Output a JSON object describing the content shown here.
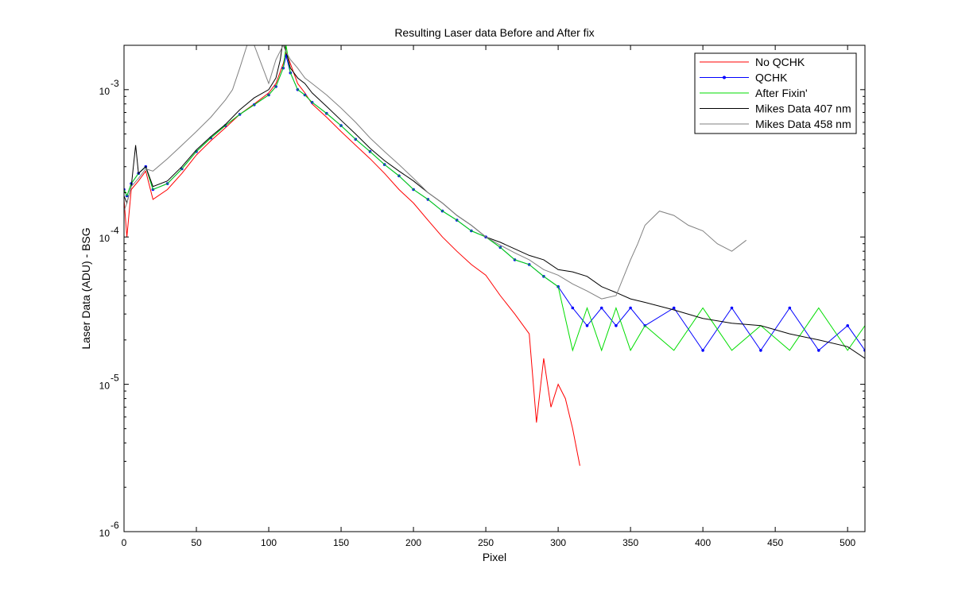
{
  "chart_data": {
    "type": "line",
    "title": "Resulting Laser data Before and After fix",
    "xlabel": "Pixel",
    "ylabel": "Laser Data (ADU) - BSG",
    "xlim": [
      0,
      512
    ],
    "ylim": [
      1e-06,
      0.002
    ],
    "yscale": "log",
    "x_ticks": [
      0,
      50,
      100,
      150,
      200,
      250,
      300,
      350,
      400,
      450,
      500
    ],
    "x_tick_labels": [
      "0",
      "50",
      "100",
      "150",
      "200",
      "250",
      "300",
      "350",
      "400",
      "450",
      "500"
    ],
    "y_ticks": [
      1e-06,
      1e-05,
      0.0001,
      0.001
    ],
    "y_tick_labels": [
      {
        "base": "10",
        "exp": "-6"
      },
      {
        "base": "10",
        "exp": "-5"
      },
      {
        "base": "10",
        "exp": "-4"
      },
      {
        "base": "10",
        "exp": "-3"
      }
    ],
    "grid": false,
    "legend_position": "top-right",
    "series": [
      {
        "name": "No QCHK",
        "color": "#ff0000",
        "marker": "none",
        "x": [
          0,
          2,
          5,
          10,
          15,
          20,
          30,
          40,
          50,
          60,
          70,
          80,
          90,
          100,
          105,
          110,
          112,
          115,
          120,
          125,
          130,
          140,
          150,
          160,
          170,
          180,
          190,
          200,
          210,
          220,
          230,
          240,
          250,
          260,
          270,
          280,
          285,
          290,
          295,
          300,
          305,
          310,
          315
        ],
        "y": [
          0.00018,
          0.0001,
          0.00021,
          0.00024,
          0.00028,
          0.00018,
          0.00021,
          0.00027,
          0.00036,
          0.00045,
          0.00055,
          0.00068,
          0.0008,
          0.00095,
          0.0011,
          0.0015,
          0.0018,
          0.0015,
          0.0011,
          0.00095,
          0.0008,
          0.00065,
          0.00052,
          0.00042,
          0.00034,
          0.00027,
          0.00021,
          0.00017,
          0.00013,
          0.0001,
          8e-05,
          6.5e-05,
          5.5e-05,
          4e-05,
          3e-05,
          2.2e-05,
          5.5e-06,
          1.5e-05,
          7e-06,
          1e-05,
          8e-06,
          5e-06,
          2.8e-06
        ]
      },
      {
        "name": "QCHK",
        "color": "#0000ff",
        "marker": "dot",
        "x": [
          0,
          2,
          5,
          10,
          15,
          20,
          30,
          40,
          50,
          60,
          70,
          80,
          90,
          100,
          105,
          110,
          112,
          115,
          120,
          125,
          130,
          140,
          150,
          160,
          170,
          180,
          190,
          200,
          210,
          220,
          230,
          240,
          250,
          260,
          270,
          280,
          290,
          300,
          310,
          320,
          330,
          340,
          350,
          360,
          380,
          400,
          420,
          440,
          460,
          480,
          500,
          512
        ],
        "y": [
          0.00021,
          0.00019,
          0.00023,
          0.00027,
          0.0003,
          0.00021,
          0.00023,
          0.00029,
          0.00038,
          0.00047,
          0.00057,
          0.00068,
          0.00079,
          0.00092,
          0.00105,
          0.0014,
          0.0017,
          0.0013,
          0.001,
          0.00092,
          0.00082,
          0.00069,
          0.00057,
          0.00046,
          0.00038,
          0.00031,
          0.00026,
          0.00021,
          0.00018,
          0.00015,
          0.00013,
          0.00011,
          0.0001,
          8.5e-05,
          7e-05,
          6.5e-05,
          5.4e-05,
          4.6e-05,
          3.3e-05,
          2.5e-05,
          3.3e-05,
          2.5e-05,
          3.3e-05,
          2.5e-05,
          3.3e-05,
          1.7e-05,
          3.3e-05,
          1.7e-05,
          3.3e-05,
          1.7e-05,
          2.5e-05,
          1.7e-05
        ]
      },
      {
        "name": "After Fixin'",
        "color": "#00dd00",
        "marker": "none",
        "x": [
          0,
          2,
          5,
          10,
          15,
          20,
          30,
          40,
          50,
          60,
          70,
          80,
          90,
          100,
          105,
          110,
          112,
          115,
          120,
          125,
          130,
          140,
          150,
          160,
          170,
          180,
          190,
          200,
          210,
          220,
          230,
          240,
          250,
          260,
          270,
          280,
          290,
          300,
          310,
          320,
          330,
          340,
          350,
          360,
          380,
          400,
          420,
          440,
          460,
          480,
          500,
          512
        ],
        "y": [
          0.00021,
          0.00019,
          0.00023,
          0.00027,
          0.0003,
          0.00021,
          0.00023,
          0.00029,
          0.00038,
          0.00047,
          0.00057,
          0.00068,
          0.00079,
          0.00092,
          0.00105,
          0.0014,
          0.002,
          0.0013,
          0.001,
          0.00092,
          0.00082,
          0.00069,
          0.00057,
          0.00046,
          0.00038,
          0.00031,
          0.00026,
          0.00021,
          0.00018,
          0.00015,
          0.00013,
          0.00011,
          0.0001,
          8.5e-05,
          7e-05,
          6.5e-05,
          5.4e-05,
          4.6e-05,
          1.7e-05,
          3.3e-05,
          1.7e-05,
          3.3e-05,
          1.7e-05,
          2.5e-05,
          1.7e-05,
          3.3e-05,
          1.7e-05,
          2.5e-05,
          1.7e-05,
          3.3e-05,
          1.7e-05,
          2.5e-05
        ]
      },
      {
        "name": "Mikes Data 407 nm",
        "color": "#000000",
        "marker": "none",
        "x": [
          0,
          2,
          5,
          8,
          10,
          15,
          20,
          30,
          40,
          50,
          60,
          70,
          80,
          90,
          100,
          105,
          108,
          110,
          112,
          115,
          120,
          125,
          130,
          140,
          150,
          160,
          170,
          180,
          190,
          200,
          210,
          220,
          230,
          240,
          250,
          260,
          270,
          280,
          290,
          300,
          310,
          320,
          330,
          340,
          350,
          360,
          380,
          400,
          420,
          440,
          460,
          480,
          500,
          512
        ],
        "y": [
          0.00019,
          0.00017,
          0.00022,
          0.00042,
          0.00027,
          0.0003,
          0.00022,
          0.00024,
          0.0003,
          0.00039,
          0.00048,
          0.00058,
          0.00073,
          0.00088,
          0.001,
          0.0012,
          0.0016,
          0.0022,
          0.0018,
          0.0014,
          0.0012,
          0.0011,
          0.00095,
          0.00077,
          0.00062,
          0.0005,
          0.0004,
          0.00033,
          0.00028,
          0.00024,
          0.0002,
          0.00017,
          0.00014,
          0.00012,
          0.0001,
          9.2e-05,
          8.3e-05,
          7.5e-05,
          7e-05,
          6e-05,
          5.8e-05,
          5.4e-05,
          4.6e-05,
          4.2e-05,
          3.8e-05,
          3.6e-05,
          3.2e-05,
          2.8e-05,
          2.6e-05,
          2.5e-05,
          2.2e-05,
          2e-05,
          1.8e-05,
          1.5e-05
        ]
      },
      {
        "name": "Mikes Data 458 nm",
        "color": "#808080",
        "marker": "none",
        "x": [
          0,
          2,
          5,
          10,
          15,
          20,
          30,
          40,
          50,
          60,
          70,
          75,
          80,
          85,
          90,
          100,
          105,
          110,
          112,
          115,
          120,
          125,
          130,
          140,
          150,
          160,
          170,
          180,
          190,
          200,
          210,
          220,
          230,
          240,
          250,
          260,
          270,
          280,
          290,
          300,
          310,
          320,
          330,
          340,
          350,
          355,
          360,
          370,
          380,
          390,
          400,
          410,
          420,
          430
        ],
        "y": [
          0.00015,
          0.00017,
          0.00022,
          0.00025,
          0.00029,
          0.00028,
          0.00034,
          0.00042,
          0.00052,
          0.00065,
          0.00085,
          0.001,
          0.0014,
          0.002,
          0.002,
          0.0011,
          0.0016,
          0.002,
          0.0018,
          0.0016,
          0.0014,
          0.0012,
          0.0011,
          0.00092,
          0.00075,
          0.0006,
          0.00047,
          0.00038,
          0.00031,
          0.00025,
          0.0002,
          0.00017,
          0.00014,
          0.00012,
          0.0001,
          8.8e-05,
          7.8e-05,
          7e-05,
          6e-05,
          5.5e-05,
          4.8e-05,
          4.3e-05,
          3.8e-05,
          4e-05,
          7e-05,
          9e-05,
          0.00012,
          0.00015,
          0.00014,
          0.00012,
          0.00011,
          9e-05,
          8e-05,
          9.5e-05
        ]
      }
    ]
  }
}
